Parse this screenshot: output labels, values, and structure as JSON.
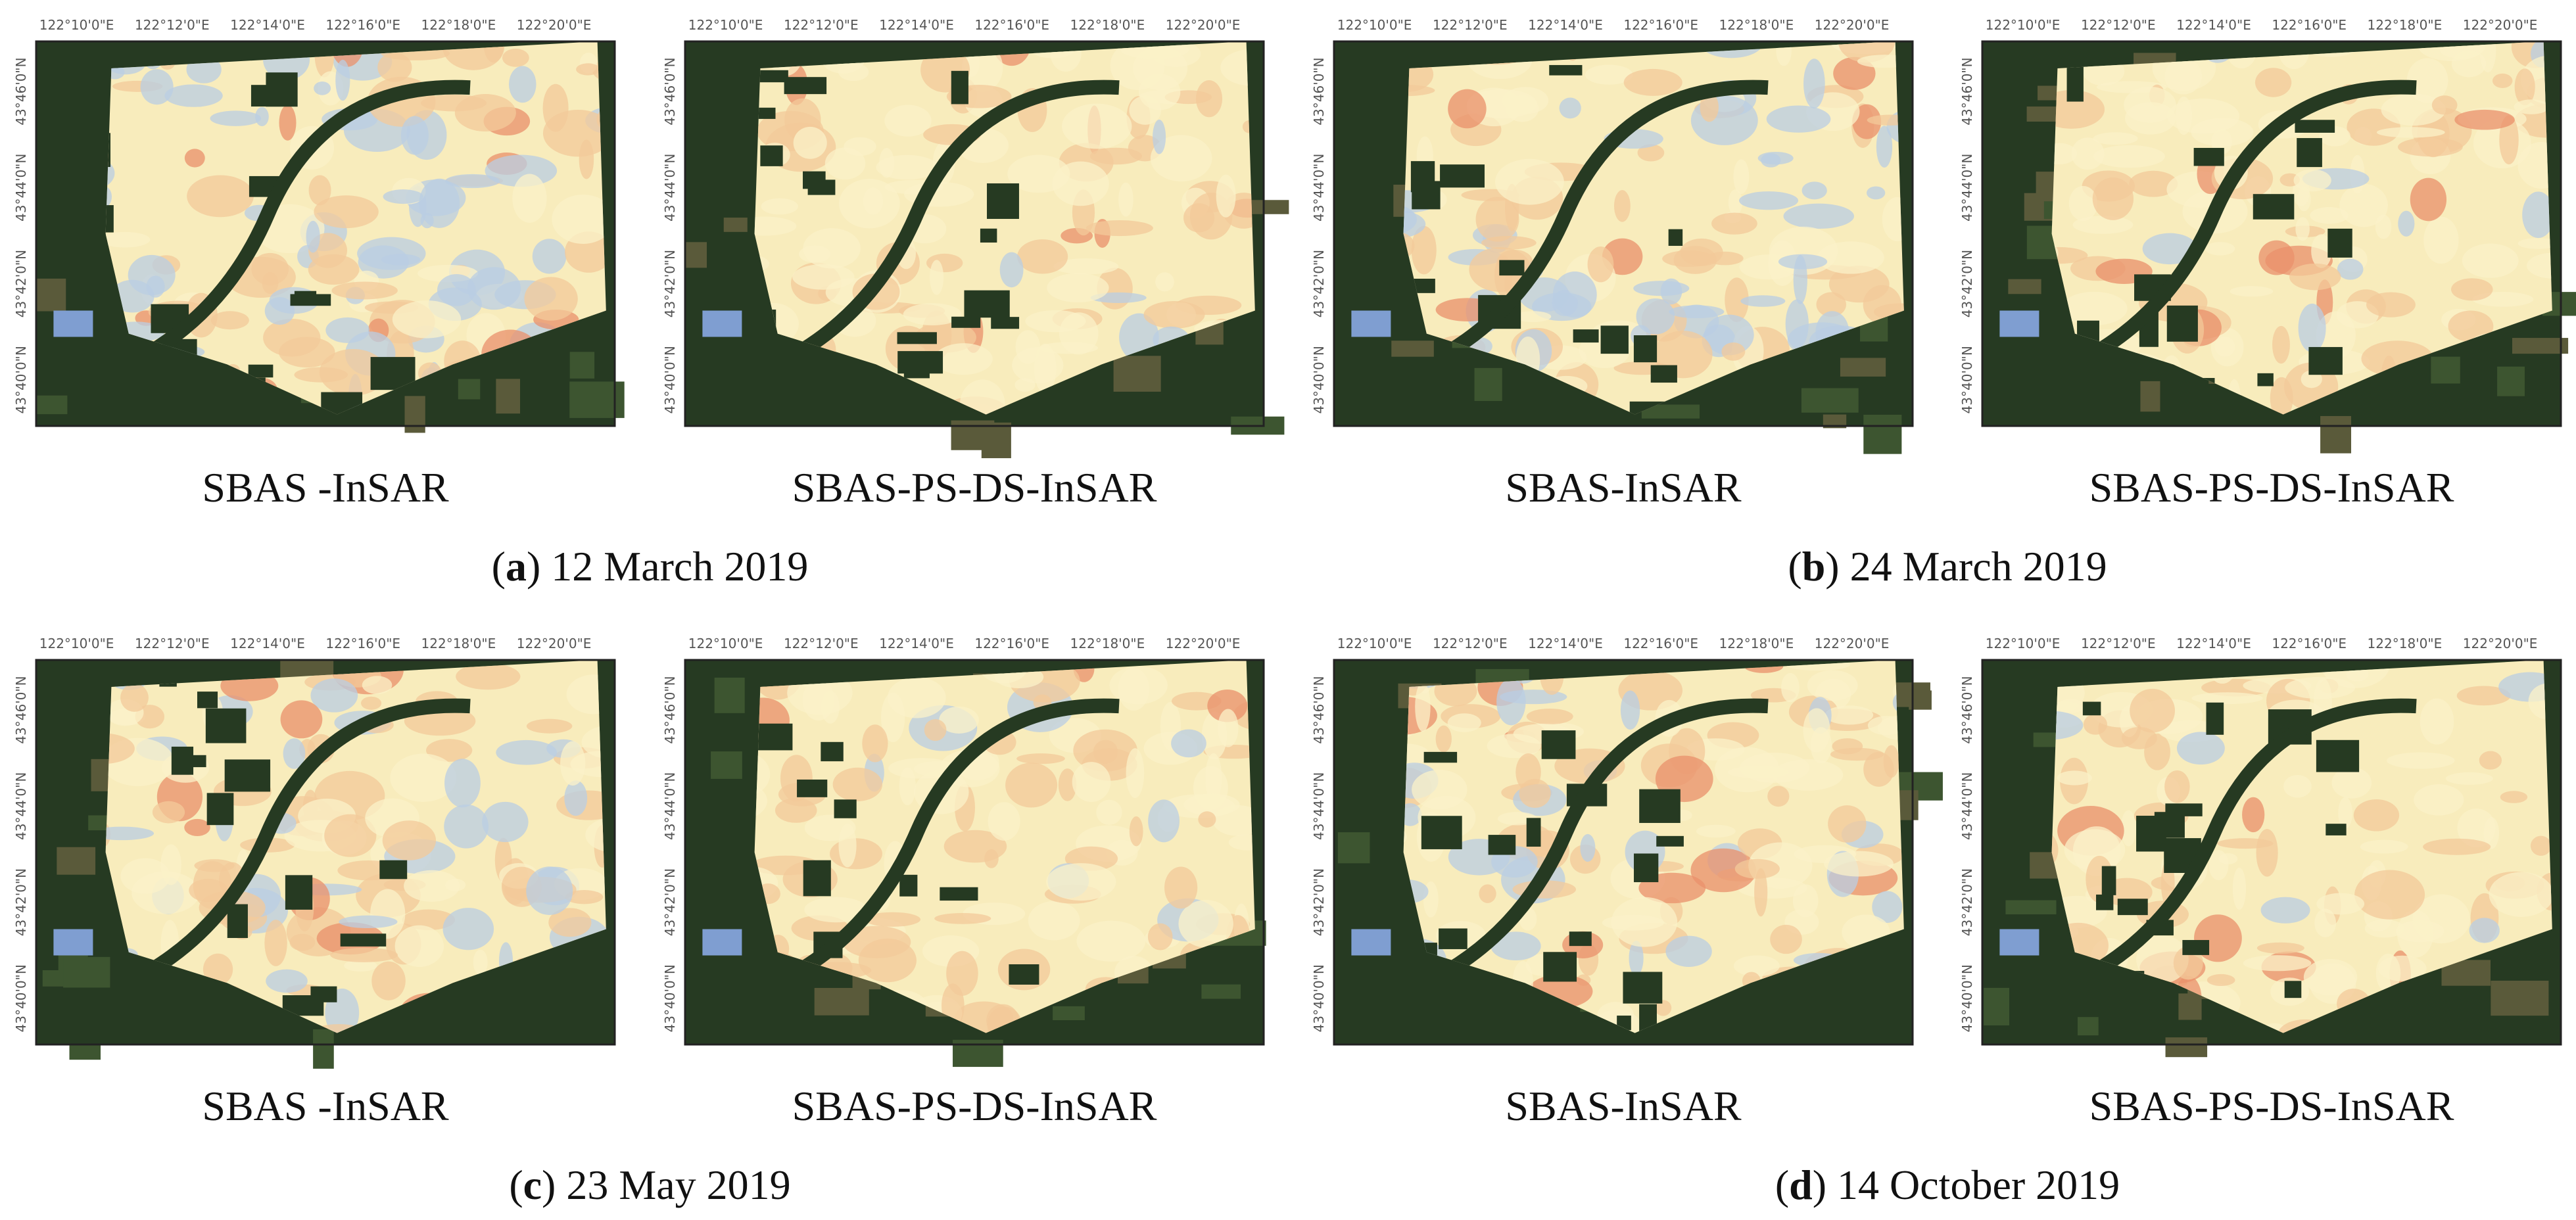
{
  "lon_ticks": [
    "122°10'0\"E",
    "122°12'0\"E",
    "122°14'0\"E",
    "122°16'0\"E",
    "122°18'0\"E",
    "122°20'0\"E"
  ],
  "lat_ticks": [
    "43°46'0\"N",
    "43°44'0\"N",
    "43°42'0\"N",
    "43°40'0\"N"
  ],
  "panels": [
    {
      "caption": [
        "(",
        "a",
        ") 12 March 2019"
      ],
      "maps": [
        "SBAS -InSAR",
        "SBAS-PS-DS-InSAR"
      ]
    },
    {
      "caption": [
        "(",
        "b",
        ") 24 March 2019"
      ],
      "maps": [
        "SBAS-InSAR",
        "SBAS-PS-DS-InSAR"
      ]
    },
    {
      "caption": [
        "(",
        "c",
        ") 23 May 2019"
      ],
      "maps": [
        "SBAS -InSAR",
        "SBAS-PS-DS-InSAR"
      ]
    },
    {
      "caption": [
        "(",
        "d",
        ") 14 October 2019"
      ],
      "maps": [
        "SBAS-InSAR",
        "SBAS-PS-DS-InSAR"
      ]
    }
  ]
}
